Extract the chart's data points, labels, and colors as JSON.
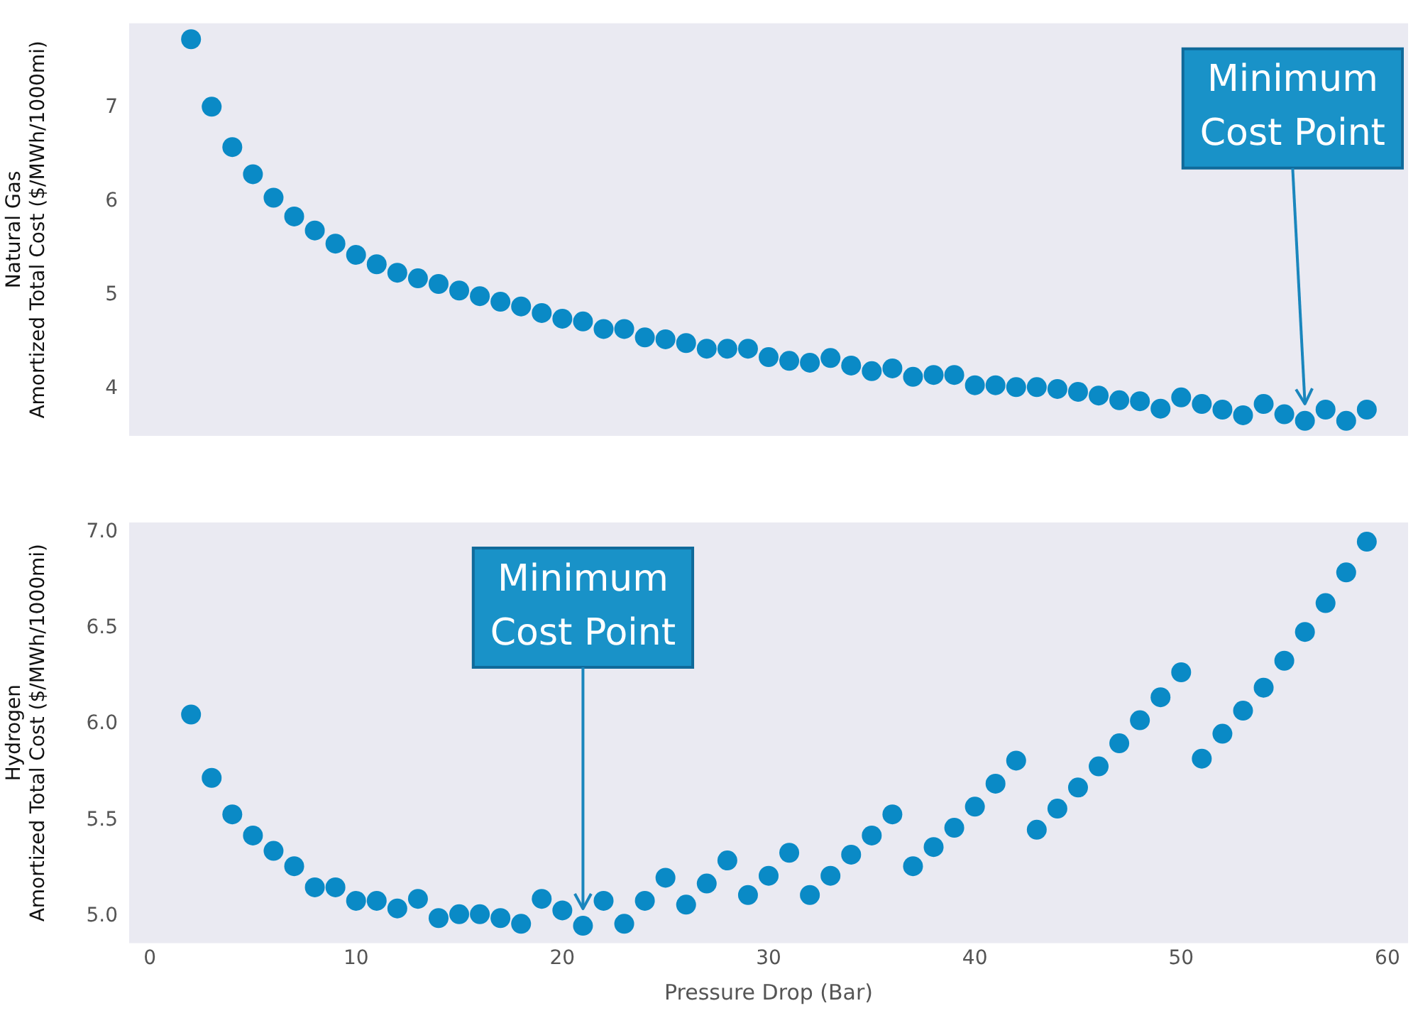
{
  "chart_data": [
    {
      "type": "scatter",
      "ylabel": "Natural Gas\nAmortized Total Cost ($/MWh/1000mi)",
      "marker": "circle",
      "tick_labels": "y",
      "xlim": [
        -1,
        61
      ],
      "xticks": [
        0,
        10,
        20,
        30,
        40,
        50,
        60
      ],
      "ylim": [
        3.5,
        7.9
      ],
      "yticks": [
        4,
        5,
        6,
        7
      ],
      "x": [
        2,
        3,
        4,
        5,
        6,
        7,
        8,
        9,
        10,
        11,
        12,
        13,
        14,
        15,
        16,
        17,
        18,
        19,
        20,
        21,
        22,
        23,
        24,
        25,
        26,
        27,
        28,
        29,
        30,
        31,
        32,
        33,
        34,
        35,
        36,
        37,
        38,
        39,
        40,
        41,
        42,
        43,
        44,
        45,
        46,
        47,
        48,
        49,
        50,
        51,
        52,
        53,
        54,
        55,
        56,
        57,
        58,
        59
      ],
      "series": [
        {
          "color": "#0a8ac6",
          "values": [
            7.73,
            7.01,
            6.58,
            6.29,
            6.04,
            5.84,
            5.69,
            5.55,
            5.43,
            5.33,
            5.24,
            5.18,
            5.12,
            5.05,
            4.99,
            4.93,
            4.88,
            4.81,
            4.75,
            4.72,
            4.64,
            4.64,
            4.55,
            4.53,
            4.49,
            4.43,
            4.43,
            4.43,
            4.34,
            4.3,
            4.28,
            4.33,
            4.25,
            4.19,
            4.22,
            4.13,
            4.15,
            4.15,
            4.04,
            4.04,
            4.02,
            4.02,
            4.0,
            3.97,
            3.93,
            3.88,
            3.87,
            3.79,
            3.91,
            3.84,
            3.78,
            3.72,
            3.84,
            3.73,
            3.66,
            3.78,
            3.66,
            3.78
          ]
        }
      ],
      "annotations": [
        "Minimum Cost Point"
      ]
    },
    {
      "type": "scatter",
      "ylabel": "Hydrogen\nAmortized Total Cost ($/MWh/1000mi)",
      "xlabel": "Pressure Drop (Bar)",
      "marker": "circle",
      "xlim": [
        -1,
        61
      ],
      "xticks": [
        0,
        10,
        20,
        30,
        40,
        50,
        60
      ],
      "ylim": [
        4.86,
        7.05
      ],
      "yticks": [
        {
          "value": 5,
          "label": "5.0"
        },
        5.5,
        {
          "value": 6,
          "label": "6.0"
        },
        6.5,
        {
          "value": 7,
          "label": "7.0"
        }
      ],
      "x": [
        2,
        3,
        4,
        5,
        6,
        7,
        8,
        9,
        10,
        11,
        12,
        13,
        14,
        15,
        16,
        17,
        18,
        19,
        20,
        21,
        22,
        23,
        24,
        25,
        26,
        27,
        28,
        29,
        30,
        31,
        32,
        33,
        34,
        35,
        36,
        37,
        38,
        39,
        40,
        41,
        42,
        43,
        44,
        45,
        46,
        47,
        48,
        49,
        50,
        51,
        52,
        53,
        54,
        55,
        56,
        57,
        58,
        59
      ],
      "series": [
        {
          "color": "#0a8ac6",
          "values": [
            6.05,
            5.72,
            5.53,
            5.42,
            5.34,
            5.26,
            5.15,
            5.15,
            5.08,
            5.08,
            5.04,
            5.09,
            4.99,
            5.01,
            5.01,
            4.99,
            4.96,
            5.09,
            5.03,
            4.95,
            5.08,
            4.96,
            5.08,
            5.2,
            5.06,
            5.17,
            5.29,
            5.11,
            5.21,
            5.33,
            5.11,
            5.21,
            5.32,
            5.42,
            5.53,
            5.26,
            5.36,
            5.46,
            5.57,
            5.69,
            5.81,
            5.45,
            5.56,
            5.67,
            5.78,
            5.9,
            6.02,
            6.14,
            6.27,
            5.82,
            5.95,
            6.07,
            6.19,
            6.33,
            6.48,
            6.63,
            6.79,
            6.95
          ]
        }
      ],
      "annotations": [
        "Minimum Cost Point"
      ]
    }
  ]
}
